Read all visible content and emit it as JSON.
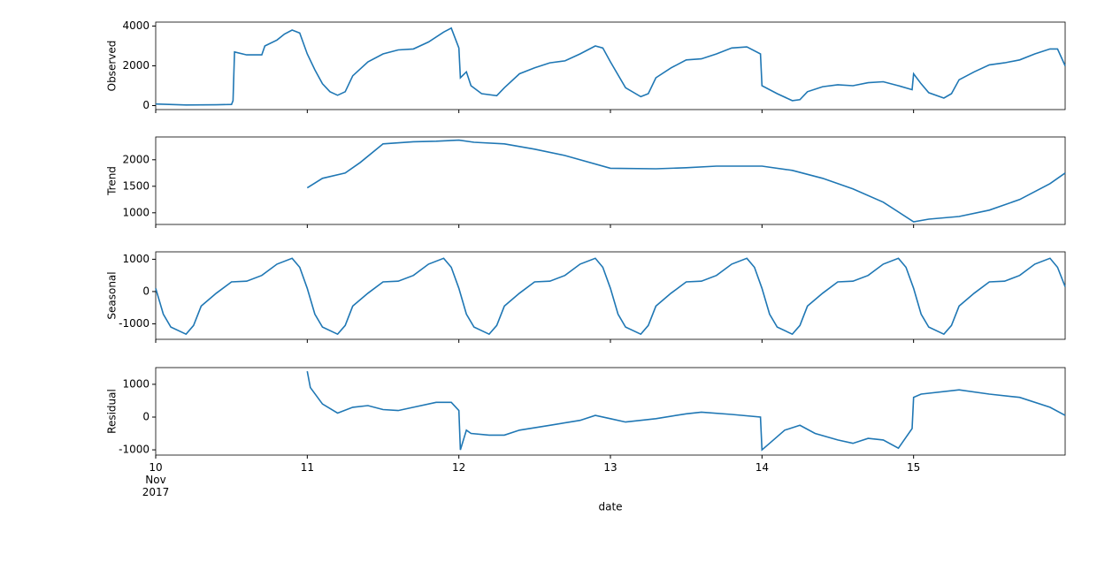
{
  "chart_data": [
    {
      "type": "line",
      "ylabel": "Observed",
      "color": "#1f77b4",
      "xlim": [
        10,
        16
      ],
      "ylim": [
        -200,
        4200
      ],
      "yticks": [
        0,
        2000,
        4000
      ],
      "x": [
        10.0,
        10.2,
        10.4,
        10.5,
        10.51,
        10.52,
        10.6,
        10.7,
        10.72,
        10.8,
        10.85,
        10.9,
        10.95,
        11.0,
        11.05,
        11.1,
        11.15,
        11.2,
        11.25,
        11.3,
        11.4,
        11.5,
        11.6,
        11.7,
        11.8,
        11.9,
        11.95,
        12.0,
        12.01,
        12.05,
        12.08,
        12.15,
        12.25,
        12.3,
        12.4,
        12.5,
        12.6,
        12.7,
        12.8,
        12.9,
        12.95,
        13.0,
        13.1,
        13.2,
        13.25,
        13.3,
        13.4,
        13.5,
        13.6,
        13.7,
        13.8,
        13.9,
        13.99,
        14.0,
        14.1,
        14.2,
        14.25,
        14.3,
        14.4,
        14.5,
        14.6,
        14.7,
        14.8,
        14.9,
        14.99,
        15.0,
        15.05,
        15.1,
        15.2,
        15.25,
        15.3,
        15.4,
        15.5,
        15.6,
        15.7,
        15.8,
        15.9,
        15.95,
        16.0
      ],
      "values": [
        80,
        30,
        40,
        60,
        250,
        2700,
        2550,
        2550,
        3000,
        3300,
        3600,
        3800,
        3650,
        2600,
        1800,
        1100,
        700,
        520,
        700,
        1500,
        2200,
        2600,
        2800,
        2850,
        3200,
        3700,
        3900,
        2900,
        1400,
        1700,
        1000,
        600,
        500,
        900,
        1600,
        1900,
        2150,
        2250,
        2600,
        3000,
        2900,
        2200,
        900,
        450,
        600,
        1400,
        1900,
        2300,
        2350,
        2600,
        2900,
        2950,
        2600,
        1000,
        600,
        250,
        300,
        700,
        950,
        1050,
        1000,
        1150,
        1200,
        1000,
        800,
        1600,
        1100,
        650,
        380,
        600,
        1300,
        1700,
        2050,
        2150,
        2300,
        2600,
        2850,
        2850,
        2000
      ]
    },
    {
      "type": "line",
      "ylabel": "Trend",
      "color": "#1f77b4",
      "xlim": [
        10,
        16
      ],
      "ylim": [
        780,
        2430
      ],
      "yticks": [
        1000,
        1500,
        2000
      ],
      "x": [
        11.0,
        11.1,
        11.25,
        11.35,
        11.5,
        11.7,
        11.85,
        12.0,
        12.1,
        12.3,
        12.5,
        12.7,
        13.0,
        13.3,
        13.5,
        13.7,
        14.0,
        14.2,
        14.4,
        14.6,
        14.8,
        15.0,
        15.1,
        15.3,
        15.5,
        15.7,
        15.9,
        16.0
      ],
      "values": [
        1470,
        1650,
        1750,
        1950,
        2300,
        2340,
        2350,
        2370,
        2330,
        2300,
        2200,
        2080,
        1840,
        1830,
        1850,
        1880,
        1880,
        1800,
        1650,
        1450,
        1200,
        830,
        880,
        930,
        1050,
        1250,
        1550,
        1750
      ]
    },
    {
      "type": "line",
      "ylabel": "Seasonal",
      "color": "#1f77b4",
      "xlim": [
        10,
        16
      ],
      "ylim": [
        -1480,
        1230
      ],
      "yticks": [
        -1000,
        0,
        1000
      ],
      "x": [
        10.0,
        10.05,
        10.1,
        10.2,
        10.25,
        10.3,
        10.4,
        10.5,
        10.6,
        10.7,
        10.8,
        10.9,
        10.95,
        11.0,
        11.05,
        11.1,
        11.2,
        11.25,
        11.3,
        11.4,
        11.5,
        11.6,
        11.7,
        11.8,
        11.9,
        11.95,
        12.0,
        12.05,
        12.1,
        12.2,
        12.25,
        12.3,
        12.4,
        12.5,
        12.6,
        12.7,
        12.8,
        12.9,
        12.95,
        13.0,
        13.05,
        13.1,
        13.2,
        13.25,
        13.3,
        13.4,
        13.5,
        13.6,
        13.7,
        13.8,
        13.9,
        13.95,
        14.0,
        14.05,
        14.1,
        14.2,
        14.25,
        14.3,
        14.4,
        14.5,
        14.6,
        14.7,
        14.8,
        14.9,
        14.95,
        15.0,
        15.05,
        15.1,
        15.2,
        15.25,
        15.3,
        15.4,
        15.5,
        15.6,
        15.7,
        15.8,
        15.9,
        15.95,
        16.0
      ],
      "values": [
        100,
        -700,
        -1100,
        -1320,
        -1050,
        -450,
        -50,
        300,
        320,
        500,
        850,
        1030,
        750,
        100,
        -700,
        -1100,
        -1320,
        -1050,
        -450,
        -50,
        300,
        320,
        500,
        850,
        1030,
        750,
        100,
        -700,
        -1100,
        -1320,
        -1050,
        -450,
        -50,
        300,
        320,
        500,
        850,
        1030,
        750,
        100,
        -700,
        -1100,
        -1320,
        -1050,
        -450,
        -50,
        300,
        320,
        500,
        850,
        1030,
        750,
        100,
        -700,
        -1100,
        -1320,
        -1050,
        -450,
        -50,
        300,
        320,
        500,
        850,
        1030,
        750,
        100,
        -700,
        -1100,
        -1320,
        -1050,
        -450,
        -50,
        300,
        320,
        500,
        850,
        1030,
        750,
        150
      ]
    },
    {
      "type": "line",
      "ylabel": "Residual",
      "xlabel": "date",
      "color": "#1f77b4",
      "xlim": [
        10,
        16
      ],
      "ylim": [
        -1160,
        1510
      ],
      "yticks": [
        -1000,
        0,
        1000
      ],
      "xticks": [
        {
          "value": 10,
          "label": "10\nNov\n2017"
        },
        11,
        12,
        13,
        14,
        15
      ],
      "x": [
        11.0,
        11.02,
        11.1,
        11.2,
        11.3,
        11.4,
        11.5,
        11.6,
        11.7,
        11.85,
        11.95,
        12.0,
        12.01,
        12.05,
        12.08,
        12.2,
        12.3,
        12.4,
        12.6,
        12.8,
        12.9,
        13.0,
        13.1,
        13.3,
        13.5,
        13.6,
        13.8,
        13.99,
        14.0,
        14.05,
        14.15,
        14.25,
        14.35,
        14.5,
        14.6,
        14.7,
        14.8,
        14.9,
        14.99,
        15.0,
        15.05,
        15.3,
        15.5,
        15.7,
        15.9,
        16.0
      ],
      "values": [
        1400,
        900,
        400,
        120,
        300,
        350,
        230,
        200,
        300,
        450,
        450,
        200,
        -1000,
        -400,
        -500,
        -550,
        -550,
        -400,
        -250,
        -100,
        50,
        -50,
        -150,
        -50,
        100,
        150,
        80,
        0,
        -1000,
        -800,
        -400,
        -250,
        -500,
        -700,
        -800,
        -650,
        -700,
        -950,
        -350,
        600,
        700,
        830,
        700,
        600,
        300,
        50
      ]
    }
  ]
}
